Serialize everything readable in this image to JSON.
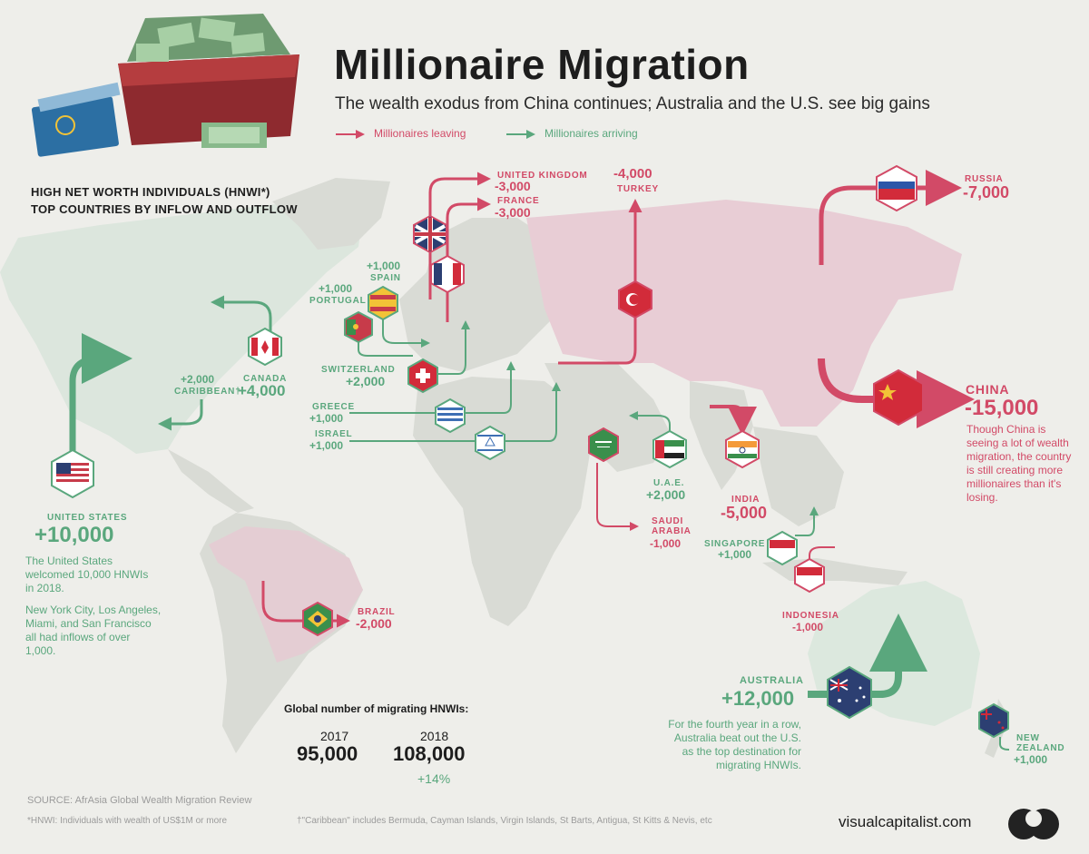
{
  "title": "Millionaire Migration",
  "subtitle": "The wealth exodus from China continues; Australia and the U.S. see big gains",
  "legend": {
    "leaving": "Millionaires leaving",
    "arriving": "Millionaires arriving"
  },
  "heading": {
    "line1": "HIGH NET WORTH INDIVIDUALS (HNWI*)",
    "line2": "TOP COUNTRIES BY INFLOW AND OUTFLOW"
  },
  "colors": {
    "leaving": "#d24a67",
    "arriving": "#5aa77d",
    "land": "#d9dbd5",
    "china_region": "#e8cdd5",
    "brazil_region": "#e4cdd3",
    "australia_region": "#dce8de",
    "na_region": "#dce6dd",
    "background": "#eeeeea"
  },
  "countries": {
    "united_states": {
      "name": "UNITED STATES",
      "value": "+10,000",
      "desc1": "The United States welcomed 10,000 HNWIs in 2018.",
      "desc2": "New York City, Los Angeles, Miami, and San Francisco all had inflows of over 1,000."
    },
    "canada": {
      "name": "CANADA",
      "value": "+4,000"
    },
    "caribbean": {
      "value": "+2,000",
      "name": "CARIBBEAN†"
    },
    "united_kingdom": {
      "name": "UNITED  KINGDOM",
      "value": "-3,000"
    },
    "france": {
      "name": "FRANCE",
      "value": "-3,000"
    },
    "spain": {
      "value": "+1,000",
      "name": "SPAIN"
    },
    "portugal": {
      "value": "+1,000",
      "name": "PORTUGAL"
    },
    "switzerland": {
      "name": "SWITZERLAND",
      "value": "+2,000"
    },
    "greece": {
      "name": "GREECE",
      "value": "+1,000"
    },
    "israel": {
      "name": "ISRAEL",
      "value": "+1,000"
    },
    "turkey": {
      "value": "-4,000",
      "name": "TURKEY"
    },
    "russia": {
      "name": "RUSSIA",
      "value": "-7,000"
    },
    "china": {
      "name": "CHINA",
      "value": "-15,000",
      "desc": "Though China is seeing a lot of wealth migration, the country is still creating more millionaires than it's losing."
    },
    "india": {
      "name": "INDIA",
      "value": "-5,000"
    },
    "uae": {
      "name": "U.A.E.",
      "value": "+2,000"
    },
    "saudi_arabia": {
      "name1": "SAUDI",
      "name2": "ARABIA",
      "value": "-1,000"
    },
    "singapore": {
      "name": "SINGAPORE",
      "value": "+1,000"
    },
    "indonesia": {
      "name": "INDONESIA",
      "value": "-1,000"
    },
    "australia": {
      "name": "AUSTRALIA",
      "value": "+12,000",
      "desc": "For the fourth year in a row, Australia beat out the U.S. as the top destination for migrating HNWIs."
    },
    "new_zealand": {
      "name1": "NEW",
      "name2": "ZEALAND",
      "value": "+1,000"
    },
    "brazil": {
      "name": "BRAZIL",
      "value": "-2,000"
    }
  },
  "global": {
    "heading": "Global number of migrating HNWIs:",
    "year1": "2017",
    "value1": "95,000",
    "year2": "2018",
    "value2": "108,000",
    "change": "+14%"
  },
  "footer": {
    "source": "SOURCE: AfrAsia Global Wealth Migration Review",
    "note1": "*HNWI: Individuals with wealth of US$1M or more",
    "note2": "†\"Caribbean\" includes Bermuda, Cayman Islands, Virgin Islands, St Barts, Antigua, St Kitts & Nevis, etc",
    "brand": "visualcapitalist.com"
  },
  "icons": [
    "suitcase-of-money-icon",
    "passport-icon",
    "visual-capitalist-logo-icon"
  ]
}
